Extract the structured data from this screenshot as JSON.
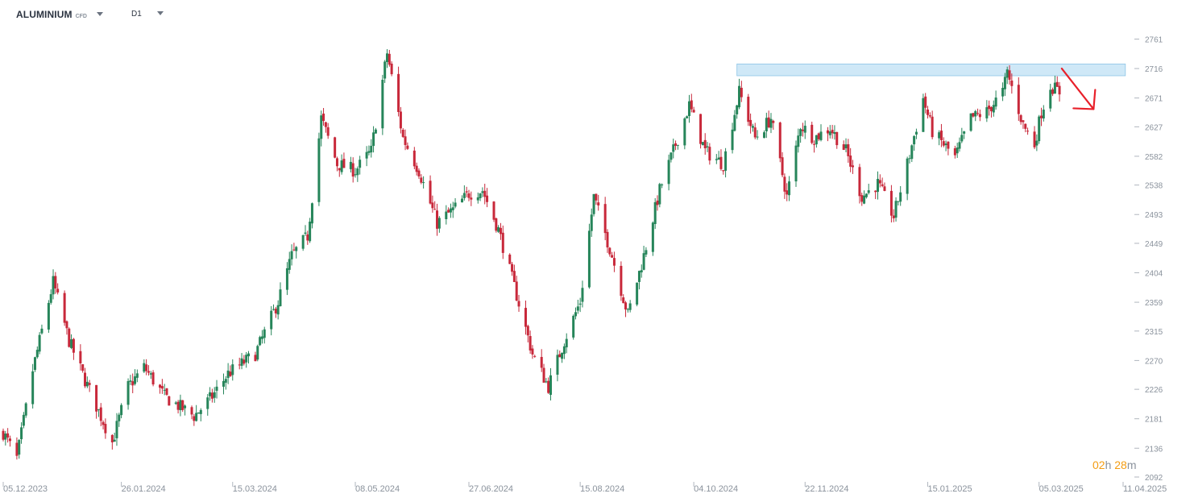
{
  "header": {
    "symbol": "ALUMINIUM",
    "symbol_tag": "CFD",
    "timeframe": "D1"
  },
  "countdown": {
    "hours": "02",
    "h_unit": "h",
    "minutes": "28",
    "m_unit": "m"
  },
  "colors": {
    "up": "#26855a",
    "down": "#c8283a",
    "zone": "#cfe8f7",
    "zone_stroke": "#8cc4e6",
    "arrow": "#e8202a",
    "axis_text": "#8a929c"
  },
  "chart_data": {
    "type": "candlestick",
    "title": "",
    "xlabel": "",
    "ylabel": "",
    "ylim": [
      2092,
      2785
    ],
    "y_ticks": [
      2761,
      2716,
      2671,
      2627,
      2582,
      2538,
      2493,
      2449,
      2404,
      2359,
      2315,
      2270,
      2226,
      2181,
      2136,
      2092
    ],
    "x_ticks": [
      "05.12.2023",
      "26.01.2024",
      "15.03.2024",
      "08.05.2024",
      "27.06.2024",
      "15.08.2024",
      "04.10.2024",
      "22.11.2024",
      "15.01.2025",
      "05.03.2025",
      "11.04.2025"
    ],
    "x_range": [
      "2023-12-05",
      "2025-04-11"
    ],
    "price_path": [
      [
        "2023-12-05",
        2160
      ],
      [
        "2023-12-11",
        2120
      ],
      [
        "2023-12-18",
        2255
      ],
      [
        "2023-12-27",
        2390
      ],
      [
        "2024-01-03",
        2300
      ],
      [
        "2024-01-10",
        2240
      ],
      [
        "2024-01-22",
        2145
      ],
      [
        "2024-01-29",
        2230
      ],
      [
        "2024-02-05",
        2260
      ],
      [
        "2024-02-14",
        2215
      ],
      [
        "2024-02-27",
        2185
      ],
      [
        "2024-03-06",
        2215
      ],
      [
        "2024-03-13",
        2250
      ],
      [
        "2024-03-25",
        2280
      ],
      [
        "2024-04-04",
        2360
      ],
      [
        "2024-04-10",
        2430
      ],
      [
        "2024-04-17",
        2460
      ],
      [
        "2024-04-23",
        2640
      ],
      [
        "2024-04-30",
        2570
      ],
      [
        "2024-05-08",
        2560
      ],
      [
        "2024-05-15",
        2590
      ],
      [
        "2024-05-22",
        2740
      ],
      [
        "2024-05-29",
        2610
      ],
      [
        "2024-06-05",
        2560
      ],
      [
        "2024-06-13",
        2480
      ],
      [
        "2024-06-20",
        2500
      ],
      [
        "2024-06-27",
        2525
      ],
      [
        "2024-07-03",
        2530
      ],
      [
        "2024-07-10",
        2470
      ],
      [
        "2024-07-18",
        2370
      ],
      [
        "2024-07-25",
        2280
      ],
      [
        "2024-08-01",
        2230
      ],
      [
        "2024-08-08",
        2300
      ],
      [
        "2024-08-15",
        2360
      ],
      [
        "2024-08-21",
        2520
      ],
      [
        "2024-08-29",
        2430
      ],
      [
        "2024-09-05",
        2340
      ],
      [
        "2024-09-12",
        2430
      ],
      [
        "2024-09-19",
        2530
      ],
      [
        "2024-09-26",
        2600
      ],
      [
        "2024-10-02",
        2660
      ],
      [
        "2024-10-09",
        2590
      ],
      [
        "2024-10-17",
        2570
      ],
      [
        "2024-10-24",
        2680
      ],
      [
        "2024-10-31",
        2610
      ],
      [
        "2024-11-07",
        2640
      ],
      [
        "2024-11-14",
        2520
      ],
      [
        "2024-11-20",
        2630
      ],
      [
        "2024-11-26",
        2610
      ],
      [
        "2024-12-03",
        2625
      ],
      [
        "2024-12-10",
        2590
      ],
      [
        "2024-12-17",
        2520
      ],
      [
        "2024-12-24",
        2540
      ],
      [
        "2024-12-31",
        2490
      ],
      [
        "2025-01-06",
        2570
      ],
      [
        "2025-01-13",
        2670
      ],
      [
        "2025-01-17",
        2620
      ],
      [
        "2025-01-27",
        2580
      ],
      [
        "2025-02-03",
        2640
      ],
      [
        "2025-02-10",
        2650
      ],
      [
        "2025-02-17",
        2680
      ],
      [
        "2025-02-19",
        2710
      ],
      [
        "2025-02-26",
        2630
      ],
      [
        "2025-03-03",
        2600
      ],
      [
        "2025-03-06",
        2650
      ],
      [
        "2025-03-10",
        2690
      ],
      [
        "2025-03-14",
        2680
      ]
    ],
    "resistance_zone": {
      "from": "2024-10-23",
      "to": "2025-04-12",
      "low": 2705,
      "high": 2723
    },
    "projection_arrow": {
      "from": [
        "2025-03-15",
        2716
      ],
      "to": [
        "2025-03-29",
        2654
      ]
    }
  }
}
